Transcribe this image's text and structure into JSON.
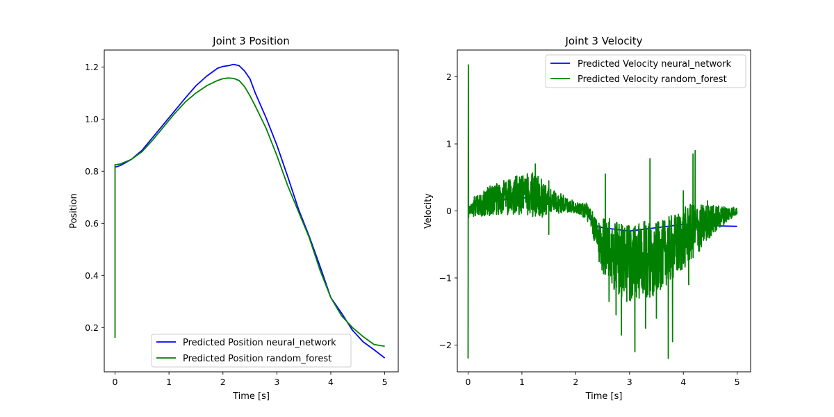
{
  "chart_data": [
    {
      "type": "line",
      "title": "Joint 3 Position",
      "xlabel": "Time [s]",
      "ylabel": "Position",
      "xlim": [
        -0.2,
        5.25
      ],
      "ylim": [
        0.03,
        1.265
      ],
      "xticks": [
        0,
        1,
        2,
        3,
        4,
        5
      ],
      "xtick_labels": [
        "0",
        "1",
        "2",
        "3",
        "4",
        "5"
      ],
      "yticks": [
        0.2,
        0.4,
        0.6,
        0.8,
        1.0,
        1.2
      ],
      "ytick_labels": [
        "0.2",
        "0.4",
        "0.6",
        "0.8",
        "1.0",
        "1.2"
      ],
      "grid": false,
      "legend_position": "lower-right",
      "series": [
        {
          "name": "Predicted Position neural_network",
          "color": "#0000ff",
          "x": [
            0,
            0.1,
            0.3,
            0.5,
            0.7,
            0.9,
            1.1,
            1.3,
            1.5,
            1.7,
            1.9,
            2.0,
            2.1,
            2.2,
            2.3,
            2.4,
            2.5,
            2.6,
            2.8,
            3.0,
            3.2,
            3.4,
            3.6,
            3.8,
            4.0,
            4.2,
            4.4,
            4.6,
            4.8,
            5.0
          ],
          "y": [
            0.815,
            0.822,
            0.845,
            0.88,
            0.93,
            0.98,
            1.03,
            1.08,
            1.128,
            1.165,
            1.195,
            1.202,
            1.205,
            1.21,
            1.205,
            1.185,
            1.155,
            1.1,
            1.005,
            0.9,
            0.78,
            0.655,
            0.55,
            0.435,
            0.315,
            0.255,
            0.19,
            0.145,
            0.115,
            0.083
          ]
        },
        {
          "name": "Predicted Position random_forest",
          "color": "#008000",
          "x": [
            0,
            0,
            0.01,
            0.1,
            0.3,
            0.5,
            0.7,
            0.9,
            1.1,
            1.3,
            1.5,
            1.7,
            1.9,
            2.0,
            2.1,
            2.2,
            2.3,
            2.4,
            2.5,
            2.6,
            2.8,
            3.0,
            3.2,
            3.4,
            3.6,
            3.8,
            4.0,
            4.2,
            4.4,
            4.6,
            4.8,
            5.0
          ],
          "y": [
            0.16,
            0.825,
            0.825,
            0.828,
            0.845,
            0.875,
            0.92,
            0.97,
            1.02,
            1.065,
            1.1,
            1.128,
            1.148,
            1.155,
            1.158,
            1.156,
            1.148,
            1.125,
            1.09,
            1.05,
            0.965,
            0.86,
            0.745,
            0.645,
            0.545,
            0.42,
            0.315,
            0.245,
            0.2,
            0.165,
            0.135,
            0.128
          ]
        }
      ]
    },
    {
      "type": "line",
      "title": "Joint 3 Velocity",
      "xlabel": "Time [s]",
      "ylabel": "Velocity",
      "xlim": [
        -0.2,
        5.25
      ],
      "ylim": [
        -2.4,
        2.4
      ],
      "xticks": [
        0,
        1,
        2,
        3,
        4,
        5
      ],
      "xtick_labels": [
        "0",
        "1",
        "2",
        "3",
        "4",
        "5"
      ],
      "yticks": [
        -2,
        -1,
        0,
        1,
        2
      ],
      "ytick_labels": [
        "−2",
        "−1",
        "0",
        "1",
        "2"
      ],
      "grid": false,
      "legend_position": "upper-right",
      "series": [
        {
          "name": "Predicted Velocity neural_network",
          "color": "#0000ff",
          "x": [
            0,
            0.2,
            0.5,
            1.0,
            1.5,
            2.0,
            2.2,
            2.25,
            2.35,
            2.5,
            3.0,
            3.5,
            4.0,
            4.5,
            5.0
          ],
          "y": [
            0.06,
            0.1,
            0.15,
            0.2,
            0.15,
            0.05,
            0.04,
            -0.1,
            -0.22,
            -0.25,
            -0.3,
            -0.25,
            -0.2,
            -0.22,
            -0.23
          ]
        },
        {
          "name": "Predicted Velocity random_forest",
          "color": "#008000",
          "x": [
            0,
            0.005,
            0.01,
            0.015,
            0.02,
            0.1,
            0.3,
            0.5,
            0.8,
            1.0,
            1.2,
            1.5,
            1.8,
            2.0,
            2.2,
            2.3,
            2.4,
            2.5,
            2.7,
            2.9,
            3.1,
            3.3,
            3.5,
            3.7,
            3.9,
            4.1,
            4.3,
            4.5,
            4.7,
            4.9,
            5.0
          ],
          "y": [
            -2.2,
            2.18,
            -0.1,
            0.05,
            0.0,
            0.06,
            0.12,
            0.18,
            0.22,
            0.24,
            0.25,
            0.15,
            0.1,
            0.05,
            0.0,
            -0.15,
            -0.4,
            -0.5,
            -0.65,
            -0.75,
            -0.8,
            -0.75,
            -0.7,
            -0.6,
            -0.5,
            -0.35,
            -0.25,
            -0.15,
            -0.08,
            -0.02,
            0.0
          ],
          "noise_band": [
            [
              0,
              0.0
            ],
            [
              0.1,
              0.15
            ],
            [
              0.5,
              0.25
            ],
            [
              1.0,
              0.3
            ],
            [
              1.3,
              0.35
            ],
            [
              1.5,
              0.2
            ],
            [
              2.0,
              0.08
            ],
            [
              2.3,
              0.15
            ],
            [
              2.5,
              0.45
            ],
            [
              2.8,
              0.55
            ],
            [
              3.0,
              0.6
            ],
            [
              3.3,
              0.6
            ],
            [
              3.6,
              0.5
            ],
            [
              3.8,
              0.5
            ],
            [
              4.1,
              0.45
            ],
            [
              4.3,
              0.35
            ],
            [
              4.6,
              0.2
            ],
            [
              5.0,
              0.05
            ]
          ],
          "spikes": [
            [
              0.9,
              0.5
            ],
            [
              1.25,
              0.7
            ],
            [
              1.5,
              0.45
            ],
            [
              1.5,
              -0.35
            ],
            [
              2.55,
              0.55
            ],
            [
              2.62,
              -1.35
            ],
            [
              2.75,
              -1.55
            ],
            [
              2.85,
              -1.85
            ],
            [
              2.95,
              -1.35
            ],
            [
              3.1,
              -2.1
            ],
            [
              3.3,
              -1.75
            ],
            [
              3.38,
              0.78
            ],
            [
              3.5,
              -1.6
            ],
            [
              3.72,
              -2.2
            ],
            [
              3.8,
              -1.95
            ],
            [
              4.0,
              0.3
            ],
            [
              4.1,
              -1.1
            ],
            [
              4.18,
              0.85
            ],
            [
              4.22,
              0.9
            ],
            [
              4.3,
              -0.6
            ],
            [
              4.45,
              0.15
            ]
          ]
        }
      ]
    }
  ]
}
